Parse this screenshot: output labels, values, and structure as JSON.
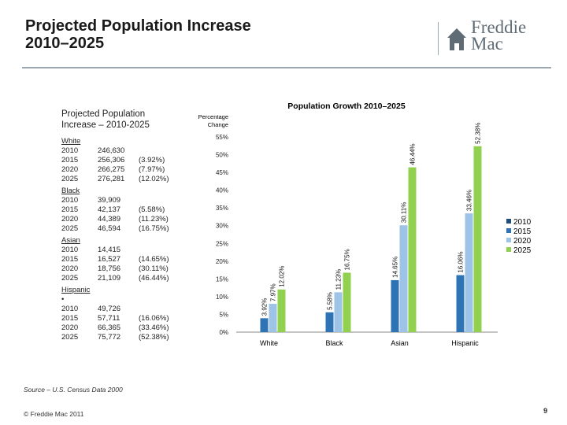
{
  "header": {
    "title_line1": "Projected Population Increase",
    "title_line2": "2010–2025",
    "logo_line1": "Freddie",
    "logo_line2": "Mac"
  },
  "left_panel": {
    "title_line1": "Projected Population",
    "title_line2": "Increase – 2010-2025",
    "groups": [
      {
        "label": "White",
        "rows": [
          {
            "year": "2010",
            "value": "246,630",
            "pct": ""
          },
          {
            "year": "2015",
            "value": "256,306",
            "pct": "(3.92%)"
          },
          {
            "year": "2020",
            "value": "266,275",
            "pct": "(7.97%)"
          },
          {
            "year": "2025",
            "value": "276,281",
            "pct": "(12.02%)"
          }
        ]
      },
      {
        "label": "Black",
        "rows": [
          {
            "year": "2010",
            "value": "39,909",
            "pct": ""
          },
          {
            "year": "2015",
            "value": "42,137",
            "pct": "(5.58%)"
          },
          {
            "year": "2020",
            "value": "44,389",
            "pct": "(11.23%)"
          },
          {
            "year": "2025",
            "value": "46,594",
            "pct": "(16.75%)"
          }
        ]
      },
      {
        "label": "Asian",
        "rows": [
          {
            "year": "2010",
            "value": "14,415",
            "pct": ""
          },
          {
            "year": "2015",
            "value": "16,527",
            "pct": "(14.65%)"
          },
          {
            "year": "2020",
            "value": "18,756",
            "pct": "(30.11%)"
          },
          {
            "year": "2025",
            "value": "21,109",
            "pct": "(46.44%)"
          }
        ]
      },
      {
        "label": "Hispanic",
        "rows": [
          {
            "year": "•",
            "value": "",
            "pct": ""
          },
          {
            "year": "2010",
            "value": "49,726",
            "pct": ""
          },
          {
            "year": "2015",
            "value": "57,711",
            "pct": "(16.06%)"
          },
          {
            "year": "2020",
            "value": "66,365",
            "pct": "(33.46%)"
          },
          {
            "year": "2025",
            "value": "75,772",
            "pct": "(52.38%)"
          }
        ]
      }
    ]
  },
  "chart_data": {
    "type": "bar",
    "title": "Population Growth 2010–2025",
    "ylabel": "Percentage Change",
    "ylim": [
      0,
      55
    ],
    "yticks": [
      0,
      5,
      10,
      15,
      20,
      25,
      30,
      35,
      40,
      45,
      50,
      55
    ],
    "ytick_suffix": "%",
    "categories": [
      "White",
      "Black",
      "Asian",
      "Hispanic"
    ],
    "series": [
      {
        "name": "2010",
        "values": [
          0,
          0,
          0,
          0
        ],
        "color": "#1f4e79"
      },
      {
        "name": "2015",
        "values": [
          3.92,
          5.58,
          14.65,
          16.06
        ],
        "color": "#2e74b5"
      },
      {
        "name": "2020",
        "values": [
          7.97,
          11.23,
          30.11,
          33.46
        ],
        "color": "#9dc3e6"
      },
      {
        "name": "2025",
        "values": [
          12.02,
          16.75,
          46.44,
          52.38
        ],
        "color": "#92d050"
      }
    ],
    "data_labels": [
      [
        "",
        "3.92%",
        "7.97%",
        "12.02%"
      ],
      [
        "",
        "5.58%",
        "11.23%",
        "16.75%"
      ],
      [
        "",
        "14.65%",
        "30.11%",
        "46.44%"
      ],
      [
        "",
        "16.06%",
        "33.46%",
        "52.38%"
      ]
    ],
    "legend": [
      "2010",
      "2015",
      "2020",
      "2025"
    ],
    "legend_position": "right",
    "grid": false
  },
  "footer": {
    "source": "Source – U.S. Census Data 2000",
    "copyright": "© Freddie Mac 2011",
    "page": "9"
  },
  "colors": {
    "rule": "#9aa6b0",
    "logo": "#5f6b75"
  }
}
